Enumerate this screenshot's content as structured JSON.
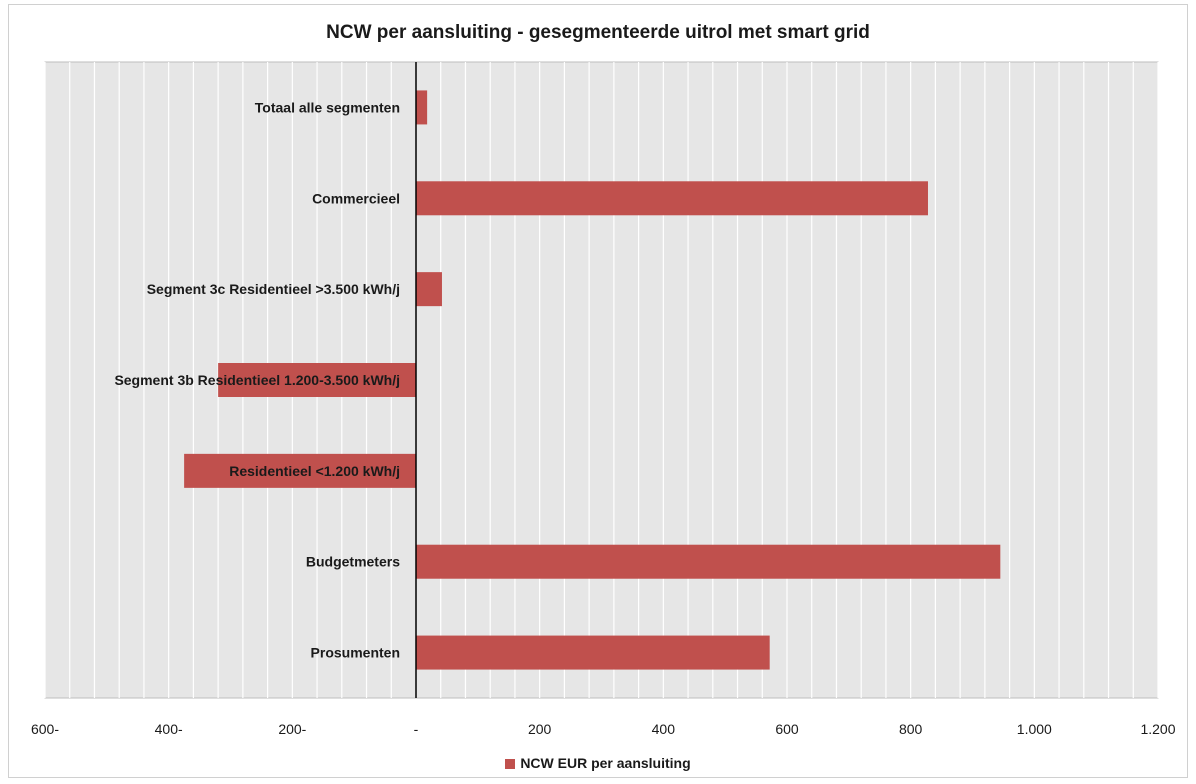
{
  "chart_data": {
    "type": "bar",
    "orientation": "horizontal",
    "title": "NCW per aansluiting - gesegmenteerde uitrol met smart grid",
    "categories": [
      "Totaal alle segmenten",
      "Commercieel",
      "Segment 3c Residentieel >3.500 kWh/j",
      "Segment 3b Residentieel 1.200-3.500 kWh/j",
      "Residentieel <1.200 kWh/j",
      "Budgetmeters",
      "Prosumenten"
    ],
    "series": [
      {
        "name": "NCW EUR per aansluiting",
        "values": [
          18,
          828,
          42,
          -320,
          -375,
          945,
          572
        ]
      }
    ],
    "xlim": [
      -600,
      1200
    ],
    "tick_values": [
      -600,
      -400,
      -200,
      0,
      200,
      400,
      600,
      800,
      1000,
      1200
    ],
    "tick_labels": [
      "600-",
      "400-",
      "200-",
      "-",
      "200",
      "400",
      "600",
      "800",
      "1.000",
      "1.200"
    ],
    "grid": true,
    "legend_position": "bottom",
    "colors": {
      "bar": "#c0504d",
      "plot_background": "#e6e6e6",
      "gridline": "#ffffff"
    }
  }
}
